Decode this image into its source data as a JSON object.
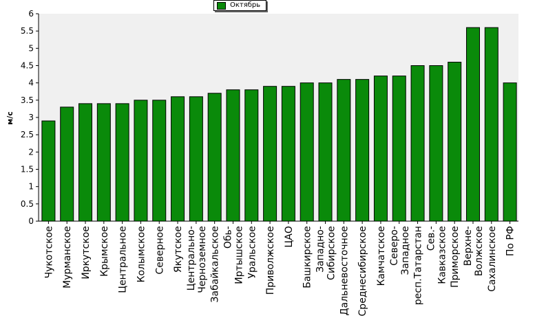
{
  "chart_data": {
    "type": "bar",
    "title": "",
    "xlabel": "",
    "ylabel": "м/с",
    "ylim": [
      0,
      6
    ],
    "yticks": [
      "0",
      "0.5",
      "1",
      "1.5",
      "2",
      "2.5",
      "3",
      "3.5",
      "4",
      "4.5",
      "5",
      "5.5",
      "6"
    ],
    "legend_position": "top-center",
    "grid": false,
    "bar_color": "#0a8a0a",
    "categories": [
      [
        "Чукотское"
      ],
      [
        "Мурманское"
      ],
      [
        "Иркутское"
      ],
      [
        "Крымское"
      ],
      [
        "Центральное"
      ],
      [
        "Колымское"
      ],
      [
        "Северное"
      ],
      [
        "Якутское"
      ],
      [
        "Центрально-",
        "Черноземное"
      ],
      [
        "Забайкальское"
      ],
      [
        "Обь-",
        "Иртышское"
      ],
      [
        "Уральское"
      ],
      [
        "Приволжское"
      ],
      [
        "ЦАО"
      ],
      [
        "Башкирское"
      ],
      [
        "Западно-",
        "Сибирское"
      ],
      [
        "Дальневосточное"
      ],
      [
        "Среднесибирское"
      ],
      [
        "Камчатское"
      ],
      [
        "Северо-",
        "Западное"
      ],
      [
        "респ.Татарстан"
      ],
      [
        "Сев.-",
        "Кавказское"
      ],
      [
        "Приморское"
      ],
      [
        "Верхне-",
        "Волжское"
      ],
      [
        "Сахалинское"
      ],
      [
        "По РФ"
      ]
    ],
    "series": [
      {
        "name": "Октябрь",
        "values": [
          2.9,
          3.3,
          3.4,
          3.4,
          3.4,
          3.5,
          3.5,
          3.6,
          3.6,
          3.7,
          3.8,
          3.8,
          3.9,
          3.9,
          4.0,
          4.0,
          4.1,
          4.1,
          4.2,
          4.2,
          4.5,
          4.5,
          4.6,
          5.6,
          5.6,
          4.0
        ]
      }
    ]
  }
}
